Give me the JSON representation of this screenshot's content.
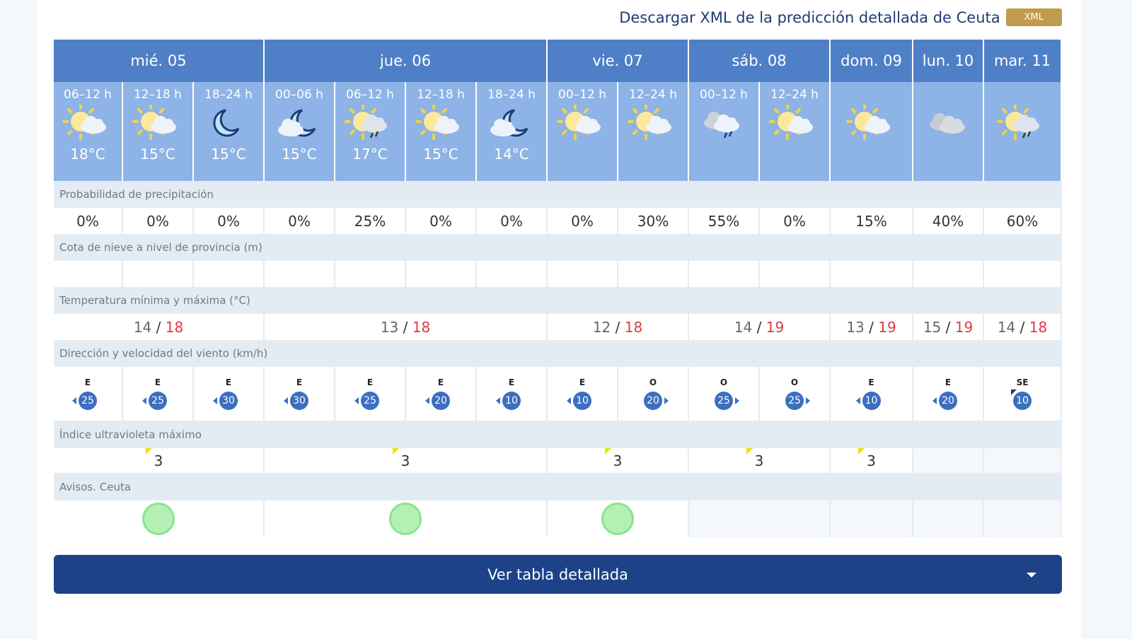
{
  "header": {
    "xml_text": "Descargar XML de la predicción detallada de Ceuta",
    "xml_button": "XML"
  },
  "days": [
    {
      "label": "mié. 05",
      "span": 3
    },
    {
      "label": "jue. 06",
      "span": 4
    },
    {
      "label": "vie. 07",
      "span": 2
    },
    {
      "label": "sáb. 08",
      "span": 2
    },
    {
      "label": "dom. 09",
      "span": 1
    },
    {
      "label": "lun. 10",
      "span": 1
    },
    {
      "label": "mar. 11",
      "span": 1
    }
  ],
  "periods": [
    {
      "period": "06–12 h",
      "icon": "sun-cloud",
      "temp": "18°C",
      "precip": "0%",
      "wind_dir": "E",
      "wind_speed": "25",
      "arrow": "l"
    },
    {
      "period": "12–18 h",
      "icon": "sun-cloud",
      "temp": "15°C",
      "precip": "0%",
      "wind_dir": "E",
      "wind_speed": "25",
      "arrow": "l"
    },
    {
      "period": "18–24 h",
      "icon": "moon",
      "temp": "15°C",
      "precip": "0%",
      "wind_dir": "E",
      "wind_speed": "30",
      "arrow": "l"
    },
    {
      "period": "00–06 h",
      "icon": "moon-cloud",
      "temp": "15°C",
      "precip": "0%",
      "wind_dir": "E",
      "wind_speed": "30",
      "arrow": "l"
    },
    {
      "period": "06–12 h",
      "icon": "sun-cloud-rain",
      "temp": "17°C",
      "precip": "25%",
      "wind_dir": "E",
      "wind_speed": "25",
      "arrow": "l"
    },
    {
      "period": "12–18 h",
      "icon": "sun-cloud",
      "temp": "15°C",
      "precip": "0%",
      "wind_dir": "E",
      "wind_speed": "20",
      "arrow": "l"
    },
    {
      "period": "18–24 h",
      "icon": "moon-cloud",
      "temp": "14°C",
      "precip": "0%",
      "wind_dir": "E",
      "wind_speed": "10",
      "arrow": "l"
    },
    {
      "period": "00–12 h",
      "icon": "sun-cloud",
      "temp": "",
      "precip": "0%",
      "wind_dir": "E",
      "wind_speed": "10",
      "arrow": "l"
    },
    {
      "period": "12–24 h",
      "icon": "sun-cloud",
      "temp": "",
      "precip": "30%",
      "wind_dir": "O",
      "wind_speed": "20",
      "arrow": "r"
    },
    {
      "period": "00–12 h",
      "icon": "cloud-rain",
      "temp": "",
      "precip": "55%",
      "wind_dir": "O",
      "wind_speed": "25",
      "arrow": "r"
    },
    {
      "period": "12–24 h",
      "icon": "sun-cloud",
      "temp": "",
      "precip": "0%",
      "wind_dir": "O",
      "wind_speed": "25",
      "arrow": "r"
    },
    {
      "period": "",
      "icon": "sun-cloud",
      "temp": "",
      "precip": "15%",
      "wind_dir": "E",
      "wind_speed": "10",
      "arrow": "l"
    },
    {
      "period": "",
      "icon": "cloud",
      "temp": "",
      "precip": "40%",
      "wind_dir": "E",
      "wind_speed": "20",
      "arrow": "l"
    },
    {
      "period": "",
      "icon": "sun-cloud-rain",
      "temp": "",
      "precip": "60%",
      "wind_dir": "SE",
      "wind_speed": "10",
      "arrow": "tl"
    }
  ],
  "labels": {
    "precip": "Probabilidad de precipitación",
    "snow": "Cota de nieve a nivel de provincia (m)",
    "temp": "Temperatura mínima y máxima (°C)",
    "wind": "Dirección y velocidad del viento (km/h)",
    "uv": "Índice ultravioleta máximo",
    "warnings": "Avisos. Ceuta"
  },
  "daily": [
    {
      "min": "14",
      "max": "18",
      "uv": "3",
      "warning": "green"
    },
    {
      "min": "13",
      "max": "18",
      "uv": "3",
      "warning": "green"
    },
    {
      "min": "12",
      "max": "18",
      "uv": "3",
      "warning": "green"
    },
    {
      "min": "14",
      "max": "19",
      "uv": "3",
      "warning": ""
    },
    {
      "min": "13",
      "max": "19",
      "uv": "3",
      "warning": ""
    },
    {
      "min": "15",
      "max": "19",
      "uv": "",
      "warning": ""
    },
    {
      "min": "14",
      "max": "18",
      "uv": "",
      "warning": ""
    }
  ],
  "separator": "/",
  "button": {
    "label": "Ver tabla detallada"
  }
}
